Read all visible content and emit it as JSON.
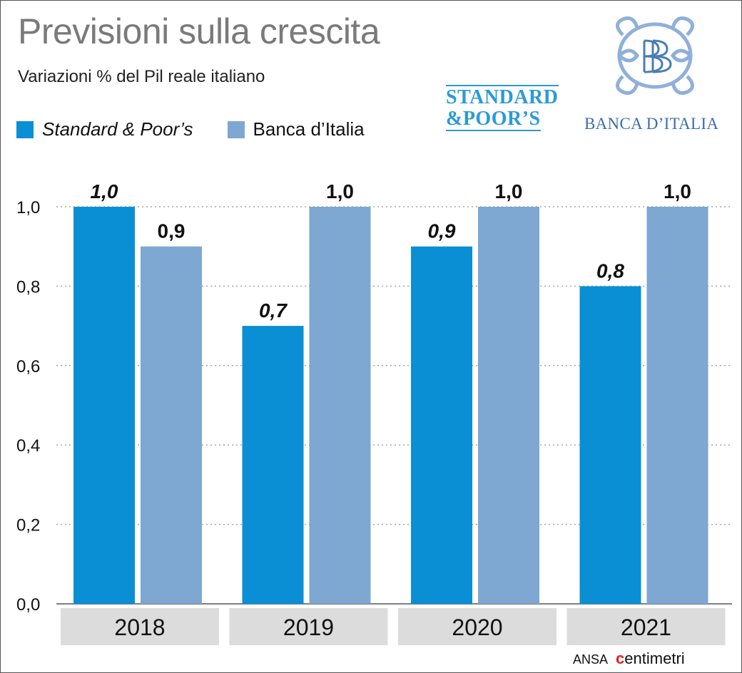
{
  "title": "Previsioni sulla crescita",
  "subtitle": "Variazioni % del Pil reale italiano",
  "logos": {
    "sp_line1": "STANDARD",
    "sp_line2": "&POOR’S",
    "bi_name": "BANCA D’ITALIA"
  },
  "credit": {
    "source": "ANSA",
    "brand_prefix": "c",
    "brand_rest": "entimetri"
  },
  "colors": {
    "sp": "#0a8fd4",
    "bi": "#7ea7d1",
    "category_band": "#dcdcdc",
    "grid": "#a8a8a8",
    "title": "#7a7a7a"
  },
  "chart_data": {
    "type": "bar",
    "categories": [
      "2018",
      "2019",
      "2020",
      "2021"
    ],
    "series": [
      {
        "name": "Standard & Poor’s",
        "values": [
          1.0,
          0.7,
          0.9,
          0.8
        ],
        "labels": [
          "1,0",
          "0,7",
          "0,9",
          "0,8"
        ]
      },
      {
        "name": "Banca d’Italia",
        "values": [
          0.9,
          1.0,
          1.0,
          1.0
        ],
        "labels": [
          "0,9",
          "1,0",
          "1,0",
          "1,0"
        ]
      }
    ],
    "yticks": [
      0.0,
      0.2,
      0.4,
      0.6,
      0.8,
      1.0
    ],
    "ytick_labels": [
      "0,0",
      "0,2",
      "0,4",
      "0,6",
      "0,8",
      "1,0"
    ],
    "ylim": [
      0,
      1.0
    ],
    "grid": true,
    "legend": "top-left"
  }
}
